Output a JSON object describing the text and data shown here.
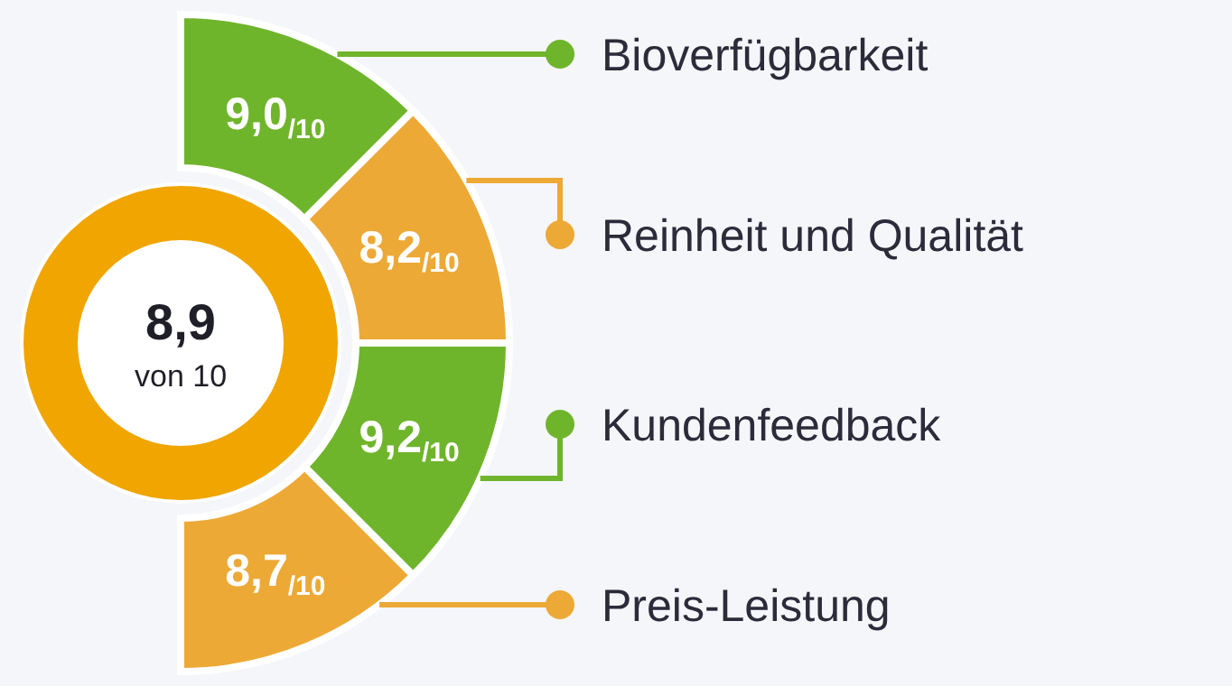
{
  "chart_data": {
    "type": "other",
    "categories": [
      "Bioverfügbarkeit",
      "Reinheit und Qualität",
      "Kundenfeedback",
      "Preis-Leistung"
    ],
    "values": [
      9.0,
      8.2,
      9.2,
      8.7
    ],
    "value_labels": [
      "9,0/10",
      "8,2/10",
      "9,2/10",
      "8,7/10"
    ],
    "colors": [
      "#6fb52c",
      "#eda936",
      "#6fb52c",
      "#eda936"
    ],
    "annotations": [
      "8,9",
      "von 10"
    ]
  }
}
